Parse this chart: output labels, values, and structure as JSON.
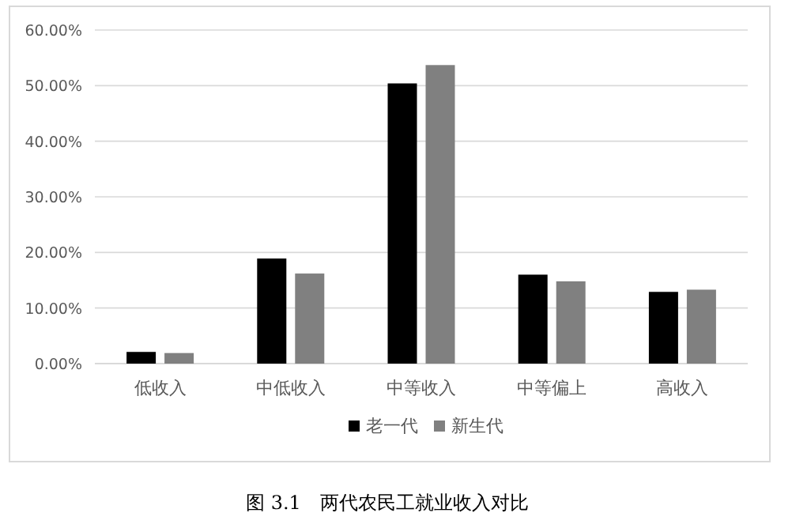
{
  "chart_data": {
    "type": "bar",
    "categories": [
      "低收入",
      "中低收入",
      "中等收入",
      "中等偏上",
      "高收入"
    ],
    "series": [
      {
        "name": "老一代",
        "color": "#000000",
        "values": [
          2.1,
          18.9,
          50.4,
          16.0,
          12.9
        ]
      },
      {
        "name": "新生代",
        "color": "#808080",
        "values": [
          1.9,
          16.2,
          53.7,
          14.8,
          13.3
        ]
      }
    ],
    "ylim": [
      0,
      60
    ],
    "yticks": [
      {
        "value": 0,
        "label": "0.00%"
      },
      {
        "value": 10,
        "label": "10.00%"
      },
      {
        "value": 20,
        "label": "20.00%"
      },
      {
        "value": 30,
        "label": "30.00%"
      },
      {
        "value": 40,
        "label": "40.00%"
      },
      {
        "value": 50,
        "label": "50.00%"
      },
      {
        "value": 60,
        "label": "60.00%"
      }
    ],
    "grid": "y",
    "legend": "bottom",
    "annotations": [
      "图 3.1　两代农民工就业收入对比"
    ]
  }
}
